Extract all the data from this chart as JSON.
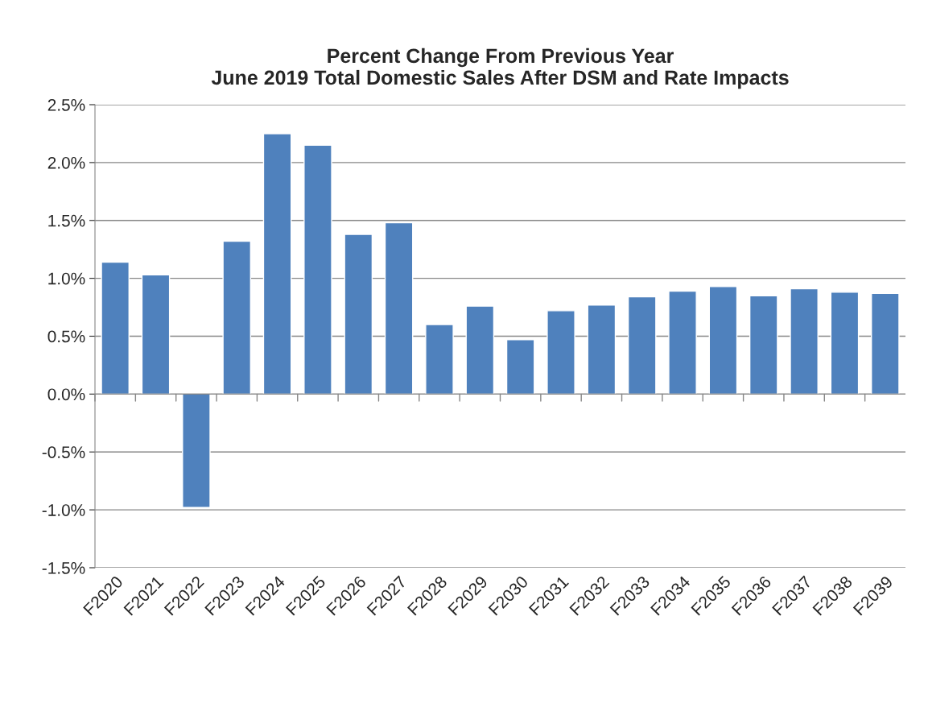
{
  "chart_data": {
    "type": "bar",
    "title": "Percent Change From Previous Year\nJune 2019 Total Domestic Sales After DSM and Rate Impacts",
    "categories": [
      "F2020",
      "F2021",
      "F2022",
      "F2023",
      "F2024",
      "F2025",
      "F2026",
      "F2027",
      "F2028",
      "F2029",
      "F2030",
      "F2031",
      "F2032",
      "F2033",
      "F2034",
      "F2035",
      "F2036",
      "F2037",
      "F2038",
      "F2039"
    ],
    "values": [
      1.14,
      1.03,
      -0.98,
      1.32,
      2.25,
      2.15,
      1.38,
      1.48,
      0.6,
      0.76,
      0.47,
      0.72,
      0.77,
      0.84,
      0.89,
      0.93,
      0.85,
      0.91,
      0.88,
      0.87
    ],
    "color": "#4f81bd",
    "ylim": [
      -1.5,
      2.5
    ],
    "yticks": [
      {
        "value": -1.5,
        "label": "-1.5%"
      },
      {
        "value": -1.0,
        "label": "-1.0%"
      },
      {
        "value": -0.5,
        "label": "-0.5%"
      },
      {
        "value": 0.0,
        "label": "0.0%"
      },
      {
        "value": 0.5,
        "label": "0.5%"
      },
      {
        "value": 1.0,
        "label": "1.0%"
      },
      {
        "value": 1.5,
        "label": "1.5%"
      },
      {
        "value": 2.0,
        "label": "2.0%"
      },
      {
        "value": 2.5,
        "label": "2.5%"
      }
    ],
    "grid": "y",
    "legend": false
  }
}
